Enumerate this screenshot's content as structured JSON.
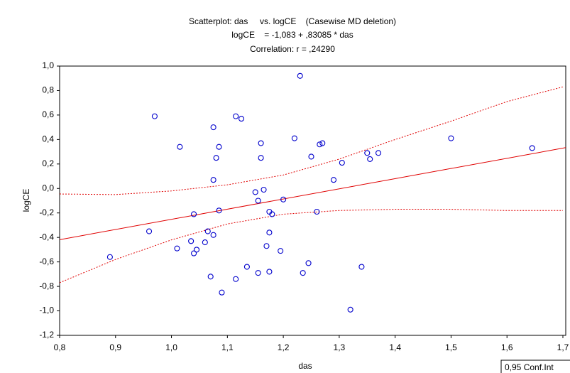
{
  "chart_data": {
    "type": "scatter",
    "title": "Scatterplot: das     vs. logCE    (Casewise MD deletion)",
    "subtitle": "logCE    = -1,083 + ,83085 * das",
    "annotation": "Correlation: r = ,24290",
    "x_label": "das",
    "y_label": "logCE",
    "legend_label": "0,95 Conf.Int",
    "color": "#0000cc",
    "fit_color": "#e00000",
    "x": [
      0.89,
      0.96,
      0.97,
      1.01,
      1.015,
      1.035,
      1.04,
      1.045,
      1.04,
      1.06,
      1.065,
      1.07,
      1.075,
      1.075,
      1.075,
      1.08,
      1.085,
      1.085,
      1.09,
      1.115,
      1.115,
      1.125,
      1.135,
      1.15,
      1.155,
      1.155,
      1.16,
      1.16,
      1.165,
      1.17,
      1.175,
      1.175,
      1.18,
      1.175,
      1.195,
      1.2,
      1.22,
      1.23,
      1.235,
      1.245,
      1.25,
      1.26,
      1.265,
      1.27,
      1.29,
      1.305,
      1.32,
      1.34,
      1.35,
      1.355,
      1.37,
      1.5,
      1.645
    ],
    "values": [
      -0.56,
      -0.35,
      0.59,
      -0.49,
      0.34,
      -0.43,
      -0.53,
      -0.5,
      -0.21,
      -0.44,
      -0.35,
      -0.72,
      -0.38,
      0.07,
      0.5,
      0.25,
      0.34,
      -0.18,
      -0.85,
      0.59,
      -0.74,
      0.57,
      -0.64,
      -0.03,
      -0.1,
      -0.69,
      0.37,
      0.25,
      -0.01,
      -0.47,
      -0.19,
      -0.36,
      -0.21,
      -0.68,
      -0.51,
      -0.09,
      0.41,
      0.92,
      -0.69,
      -0.61,
      0.26,
      -0.19,
      0.36,
      0.37,
      0.07,
      0.21,
      -0.99,
      -0.64,
      0.29,
      0.24,
      0.29,
      0.41,
      0.33
    ],
    "fit": {
      "intercept": -1.083,
      "slope": 0.83085
    },
    "ci_x": [
      0.8,
      0.9,
      1.0,
      1.1,
      1.2,
      1.3,
      1.4,
      1.5,
      1.6,
      1.7
    ],
    "ci_upper": [
      -0.045,
      -0.05,
      -0.02,
      0.03,
      0.11,
      0.24,
      0.4,
      0.55,
      0.71,
      0.83
    ],
    "ci_lower": [
      -0.77,
      -0.58,
      -0.42,
      -0.29,
      -0.21,
      -0.18,
      -0.17,
      -0.17,
      -0.18,
      -0.18
    ],
    "xlim": [
      0.8,
      1.7
    ],
    "ylim": [
      -1.2,
      1.0
    ],
    "xticks": [
      {
        "value": 0.8,
        "label": "0,8"
      },
      {
        "value": 0.9,
        "label": "0,9"
      },
      {
        "value": 1.0,
        "label": "1,0"
      },
      {
        "value": 1.1,
        "label": "1,1"
      },
      {
        "value": 1.2,
        "label": "1,2"
      },
      {
        "value": 1.3,
        "label": "1,3"
      },
      {
        "value": 1.4,
        "label": "1,4"
      },
      {
        "value": 1.5,
        "label": "1,5"
      },
      {
        "value": 1.6,
        "label": "1,6"
      },
      {
        "value": 1.7,
        "label": "1,7"
      }
    ],
    "yticks": [
      {
        "value": -1.2,
        "label": "-1,2"
      },
      {
        "value": -1.0,
        "label": "-1,0"
      },
      {
        "value": -0.8,
        "label": "-0,8"
      },
      {
        "value": -0.6,
        "label": "-0,6"
      },
      {
        "value": -0.4,
        "label": "-0,4"
      },
      {
        "value": -0.2,
        "label": "-0,2"
      },
      {
        "value": 0.0,
        "label": "0,0"
      },
      {
        "value": 0.2,
        "label": "0,2"
      },
      {
        "value": 0.4,
        "label": "0,4"
      },
      {
        "value": 0.6,
        "label": "0,6"
      },
      {
        "value": 0.8,
        "label": "0,8"
      },
      {
        "value": 1.0,
        "label": "1,0"
      }
    ]
  }
}
